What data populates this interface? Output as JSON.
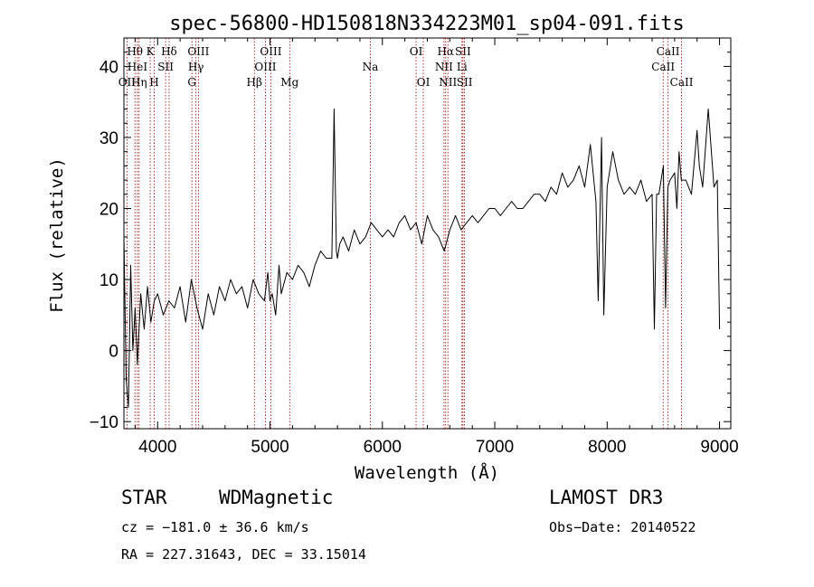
{
  "chart_data": {
    "type": "line",
    "title": "spec-56800-HD150818N334223M01_sp04-091.fits",
    "xlabel": "Wavelength (Å)",
    "ylabel": "Flux (relative)",
    "xlim": [
      3700,
      9100
    ],
    "ylim": [
      -11,
      44
    ],
    "xticks": [
      4000,
      5000,
      6000,
      7000,
      8000,
      9000
    ],
    "yticks": [
      -10,
      0,
      10,
      20,
      30,
      40
    ],
    "colors": {
      "line": "#000000",
      "marker": "#8b0000"
    },
    "spectrum": {
      "name": "flux",
      "wavelength": [
        3700,
        3720,
        3740,
        3760,
        3780,
        3800,
        3820,
        3850,
        3880,
        3910,
        3940,
        3970,
        4000,
        4050,
        4100,
        4150,
        4200,
        4250,
        4300,
        4350,
        4400,
        4450,
        4500,
        4550,
        4600,
        4650,
        4700,
        4750,
        4800,
        4850,
        4900,
        4950,
        4980,
        5000,
        5020,
        5050,
        5080,
        5100,
        5150,
        5200,
        5250,
        5300,
        5350,
        5400,
        5450,
        5500,
        5550,
        5570,
        5590,
        5600,
        5620,
        5650,
        5700,
        5750,
        5800,
        5850,
        5900,
        5950,
        6000,
        6050,
        6100,
        6150,
        6200,
        6250,
        6300,
        6350,
        6400,
        6450,
        6500,
        6550,
        6600,
        6650,
        6700,
        6750,
        6800,
        6850,
        6900,
        6950,
        7000,
        7050,
        7100,
        7150,
        7200,
        7250,
        7300,
        7350,
        7400,
        7450,
        7500,
        7550,
        7600,
        7650,
        7700,
        7750,
        7800,
        7850,
        7900,
        7920,
        7950,
        7970,
        8000,
        8050,
        8100,
        8150,
        8200,
        8250,
        8300,
        8350,
        8400,
        8420,
        8440,
        8460,
        8500,
        8520,
        8540,
        8560,
        8600,
        8620,
        8640,
        8660,
        8700,
        8750,
        8800,
        8820,
        8850,
        8900,
        8950,
        8980,
        9000
      ],
      "flux": [
        16,
        -4,
        -8,
        12,
        0,
        6,
        -2,
        8,
        3,
        9,
        4,
        7,
        8,
        5,
        7,
        6,
        9,
        4,
        10,
        6,
        3,
        8,
        5,
        9,
        7,
        10,
        8,
        9,
        6,
        10,
        8,
        7,
        11,
        7,
        8,
        5,
        12,
        8,
        11,
        10,
        12,
        11,
        9,
        12,
        14,
        13,
        13,
        34,
        14,
        13,
        15,
        16,
        14,
        17,
        15,
        16,
        18,
        17,
        16,
        17,
        16,
        18,
        19,
        17,
        18,
        15,
        19,
        17,
        16,
        14,
        17,
        19,
        17,
        18,
        19,
        18,
        19,
        20,
        20,
        19,
        20,
        21,
        20,
        20,
        21,
        22,
        22,
        21,
        23,
        22,
        25,
        23,
        24,
        26,
        23,
        29,
        21,
        7,
        30,
        5,
        23,
        28,
        24,
        22,
        23,
        22,
        24,
        21,
        22,
        3,
        22,
        22,
        26,
        6,
        23,
        24,
        25,
        20,
        28,
        24,
        24,
        22,
        31,
        26,
        23,
        34,
        23,
        24,
        3
      ]
    },
    "lines": [
      {
        "label": "Hθ",
        "wl": 3798,
        "row": 0
      },
      {
        "label": "OII",
        "wl": 3727,
        "row": 2
      },
      {
        "label": "HeI",
        "wl": 3820,
        "row": 1
      },
      {
        "label": "Hη",
        "wl": 3835,
        "row": 2
      },
      {
        "label": "K",
        "wl": 3934,
        "row": 0
      },
      {
        "label": "SII",
        "wl": 4071,
        "row": 1
      },
      {
        "label": "H",
        "wl": 3969,
        "row": 2
      },
      {
        "label": "Hδ",
        "wl": 4102,
        "row": 0
      },
      {
        "label": "OIII",
        "wl": 4363,
        "row": 0
      },
      {
        "label": "Hγ",
        "wl": 4341,
        "row": 1
      },
      {
        "label": "G",
        "wl": 4305,
        "row": 2
      },
      {
        "label": "Hβ",
        "wl": 4861,
        "row": 2
      },
      {
        "label": "OIII",
        "wl": 4959,
        "row": 1
      },
      {
        "label": "OIII",
        "wl": 5007,
        "row": 0
      },
      {
        "label": "Mg",
        "wl": 5175,
        "row": 2
      },
      {
        "label": "Na",
        "wl": 5893,
        "row": 1
      },
      {
        "label": "OI",
        "wl": 6300,
        "row": 0
      },
      {
        "label": "OI",
        "wl": 6364,
        "row": 2
      },
      {
        "label": "Hα",
        "wl": 6563,
        "row": 0
      },
      {
        "label": "NII",
        "wl": 6548,
        "row": 1
      },
      {
        "label": "NII",
        "wl": 6583,
        "row": 2
      },
      {
        "label": "SII",
        "wl": 6717,
        "row": 0
      },
      {
        "label": "Li",
        "wl": 6708,
        "row": 1
      },
      {
        "label": "SII",
        "wl": 6731,
        "row": 2
      },
      {
        "label": "CaII",
        "wl": 8542,
        "row": 0
      },
      {
        "label": "CaII",
        "wl": 8498,
        "row": 1
      },
      {
        "label": "CaII",
        "wl": 8662,
        "row": 2
      }
    ]
  },
  "info": {
    "class_label": "STAR",
    "subclass_label": "WDMagnetic",
    "survey": "LAMOST DR3",
    "redshift_text": "cz = −181.0 ± 36.6 km/s",
    "obs_date_text": "Obs−Date: 20140522",
    "coords_text": "RA = 227.31643, DEC =  33.15014"
  }
}
